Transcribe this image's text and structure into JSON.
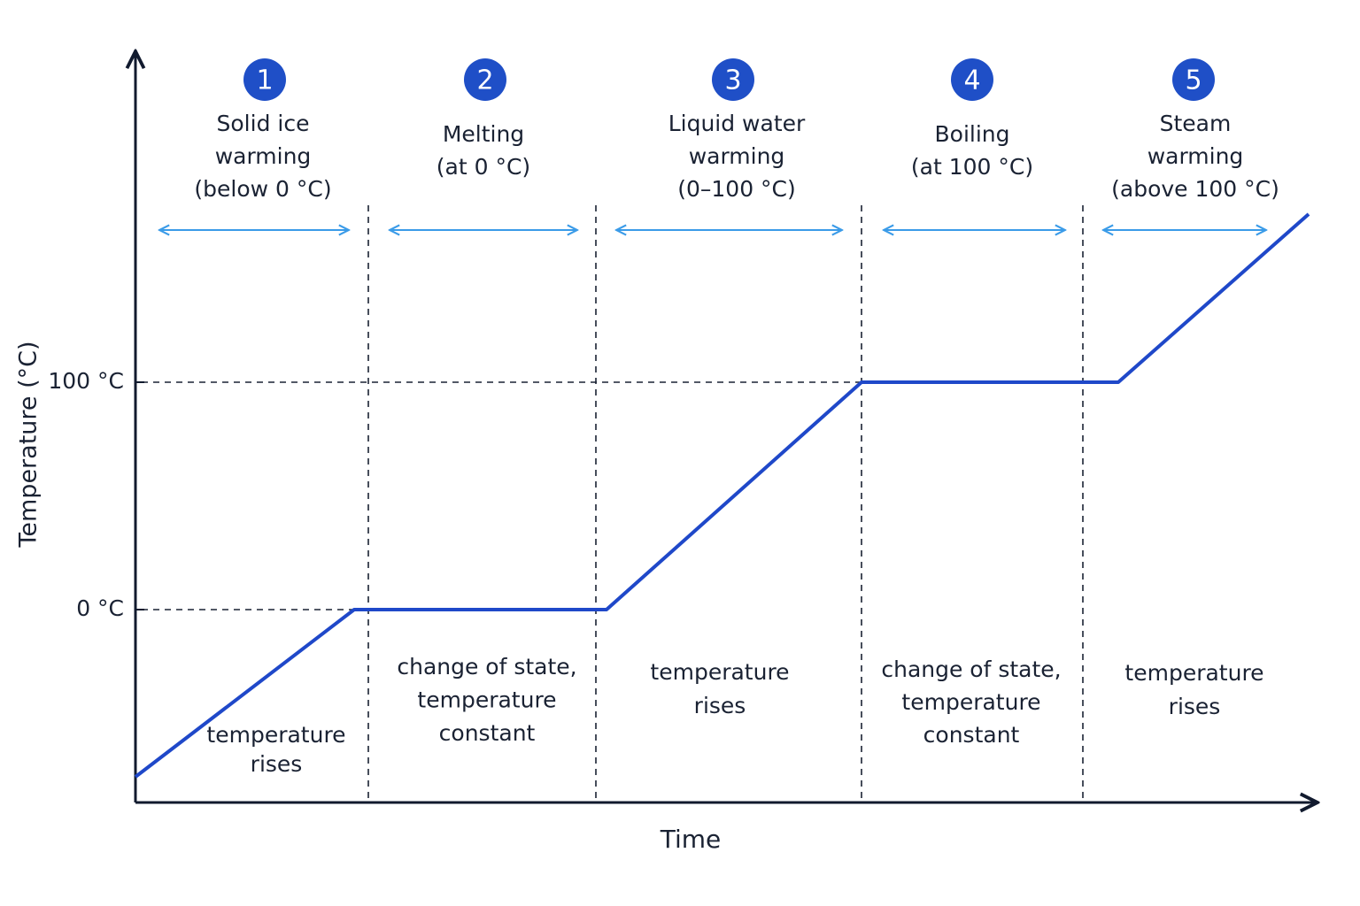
{
  "axes": {
    "y_label": "Temperature (°C)",
    "x_label": "Time",
    "y_ticks": [
      "0 °C",
      "100 °C"
    ]
  },
  "phases": [
    {
      "number": "1",
      "title": [
        "Solid ice",
        "warming",
        "(below 0 °C)"
      ],
      "note": [
        "temperature",
        "rises"
      ]
    },
    {
      "number": "2",
      "title": [
        "Melting",
        "(at 0 °C)"
      ],
      "note": [
        "change of state,",
        "temperature",
        "constant"
      ]
    },
    {
      "number": "3",
      "title": [
        "Liquid water",
        "warming",
        "(0–100 °C)"
      ],
      "note": [
        "temperature",
        "rises"
      ]
    },
    {
      "number": "4",
      "title": [
        "Boiling",
        "(at 100 °C)"
      ],
      "note": [
        "change of state,",
        "temperature",
        "constant"
      ]
    },
    {
      "number": "5",
      "title": [
        "Steam",
        "warming",
        "(above 100 °C)"
      ],
      "note": [
        "temperature",
        "rises"
      ]
    }
  ]
}
